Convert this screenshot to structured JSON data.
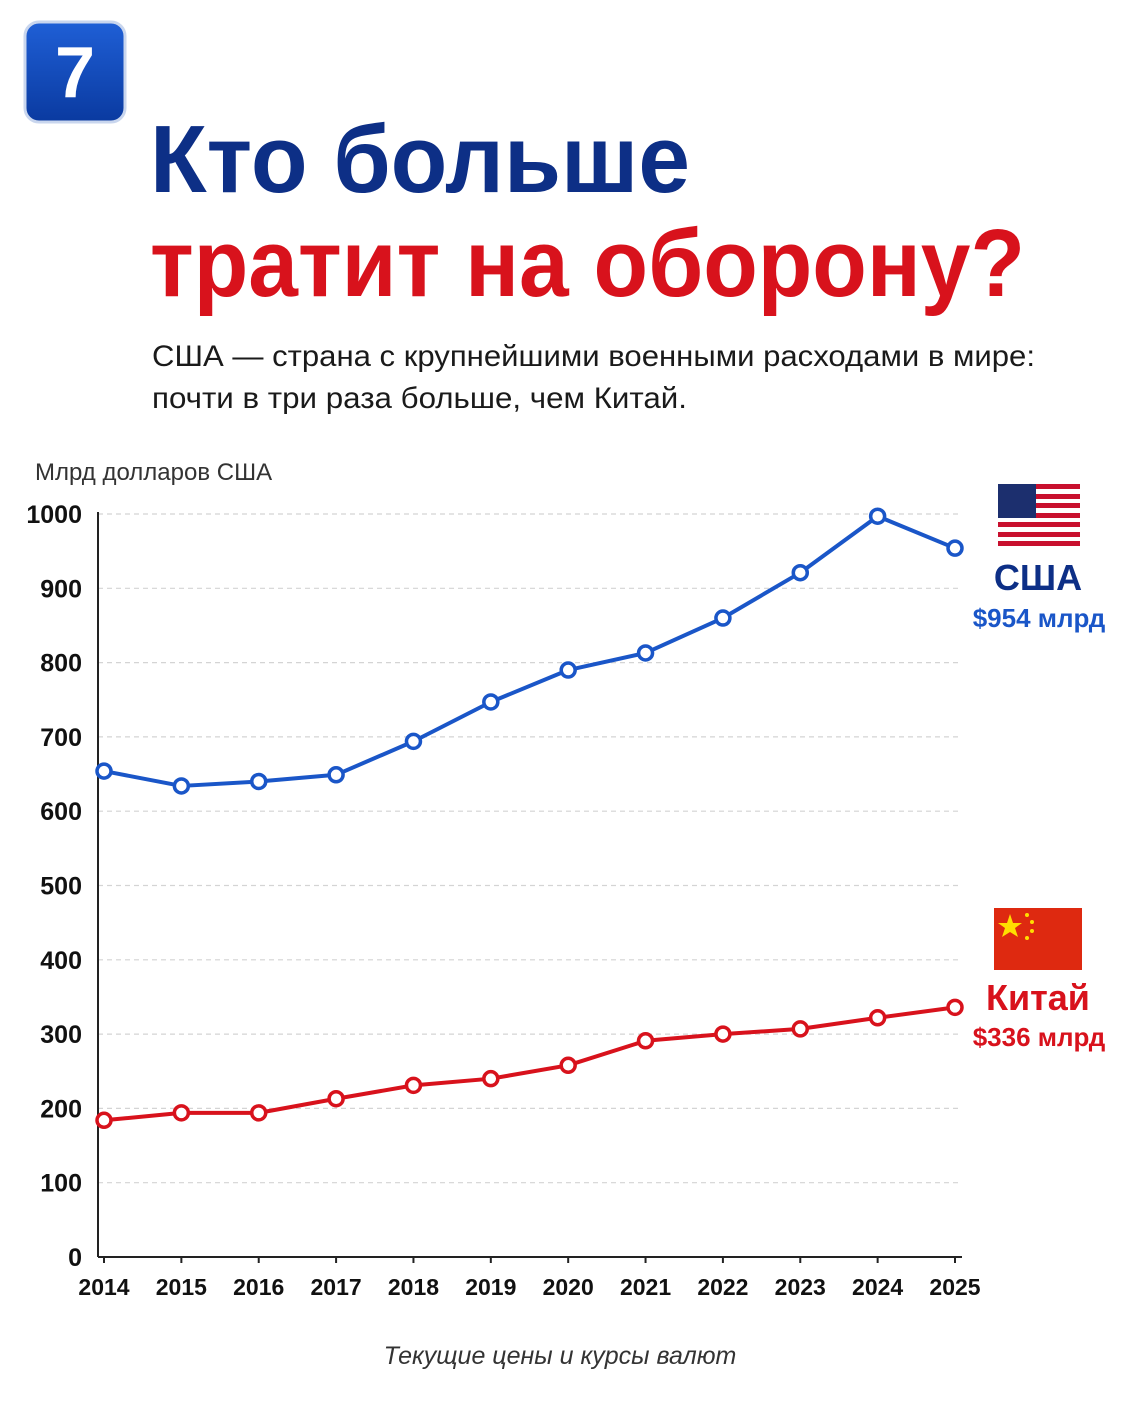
{
  "badge": "7",
  "chart_data": {
    "type": "line",
    "title_lines": [
      "Кто больше",
      "тратит на оборону?"
    ],
    "subtitle_lines": [
      "США — страна с крупнейшими военными расходами в мире:",
      "почти в три раза больше, чем Китай."
    ],
    "y_label": "Млрд долларов США",
    "note": "Текущие цены и курсы валют",
    "x": [
      2014,
      2015,
      2016,
      2017,
      2018,
      2019,
      2020,
      2021,
      2022,
      2023,
      2024,
      2025
    ],
    "xlim": [
      2014,
      2025
    ],
    "xticks": [
      2014,
      2015,
      2016,
      2017,
      2018,
      2019,
      2020,
      2021,
      2022,
      2023,
      2024,
      2025
    ],
    "ylim": [
      0,
      1000
    ],
    "yticks": [
      0,
      100,
      200,
      300,
      400,
      500,
      600,
      700,
      800,
      900,
      1000
    ],
    "grid": true,
    "series": [
      {
        "name": "США",
        "color": "#1a56c8",
        "values": [
          654,
          634,
          640,
          649,
          694,
          747,
          790,
          813,
          860,
          921,
          997,
          954
        ],
        "value_labels": [
          null,
          null,
          null,
          null,
          null,
          null,
          null,
          null,
          null,
          null,
          null,
          "$954 млрд"
        ]
      },
      {
        "name": "Китай",
        "color": "#d8121c",
        "values": [
          184,
          194,
          194,
          213,
          231,
          240,
          258,
          291,
          300,
          307,
          322,
          336
        ],
        "value_labels": [
          null,
          null,
          null,
          null,
          null,
          null,
          null,
          null,
          null,
          null,
          null,
          "$336 млрд"
        ]
      }
    ]
  }
}
